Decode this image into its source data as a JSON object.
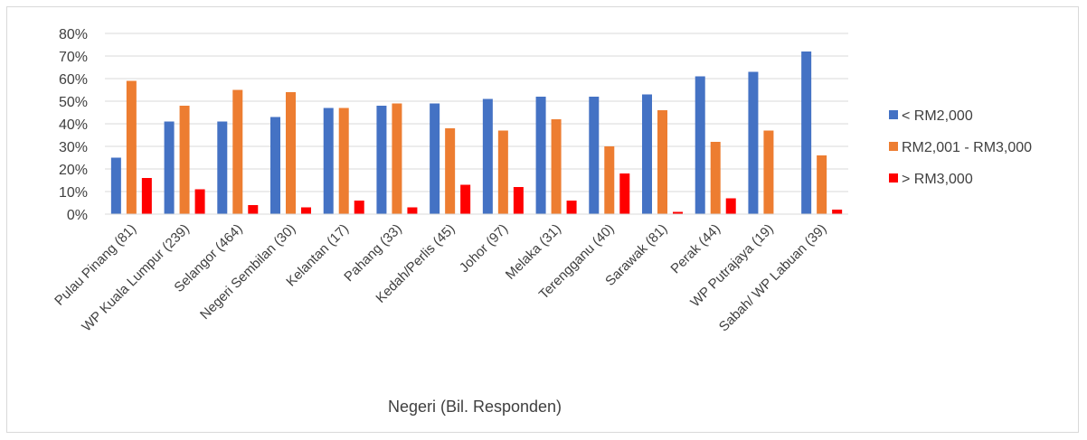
{
  "chart_data": {
    "type": "bar",
    "title": "",
    "xlabel": "Negeri (Bil. Responden)",
    "ylabel": "",
    "ylim": [
      0,
      80
    ],
    "y_ticks": [
      "0%",
      "10%",
      "20%",
      "30%",
      "40%",
      "50%",
      "60%",
      "70%",
      "80%"
    ],
    "grid": true,
    "legend_position": "right",
    "categories": [
      "Pulau Pinang (81)",
      "WP Kuala Lumpur (239)",
      "Selangor (464)",
      "Negeri Sembilan (30)",
      "Kelantan (17)",
      "Pahang (33)",
      "Kedah/Perlis (45)",
      "Johor (97)",
      "Melaka (31)",
      "Terengganu (40)",
      "Sarawak (81)",
      "Perak (44)",
      "WP Putrajaya (19)",
      "Sabah/ WP Labuan (39)"
    ],
    "series": [
      {
        "name": "< RM2,000",
        "color": "#4472c4",
        "values": [
          25,
          41,
          41,
          43,
          47,
          48,
          49,
          51,
          52,
          52,
          53,
          61,
          63,
          72
        ]
      },
      {
        "name": "RM2,001 - RM3,000",
        "color": "#ed7d31",
        "values": [
          59,
          48,
          55,
          54,
          47,
          49,
          38,
          37,
          42,
          30,
          46,
          32,
          37,
          26
        ]
      },
      {
        "name": "> RM3,000",
        "color": "#ff0000",
        "values": [
          16,
          11,
          4,
          3,
          6,
          3,
          13,
          12,
          6,
          18,
          1,
          7,
          0,
          2
        ]
      }
    ]
  }
}
